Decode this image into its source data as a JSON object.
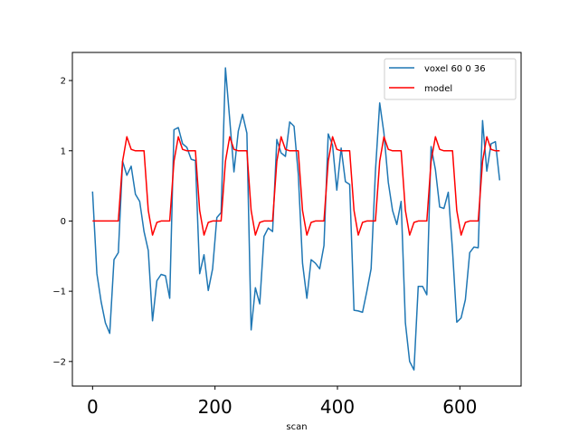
{
  "chart_data": {
    "type": "line",
    "title": "",
    "xlabel": "scan",
    "ylabel": "",
    "xlim": [
      -33,
      700
    ],
    "ylim": [
      -2.35,
      2.4
    ],
    "x_ticks": [
      0,
      200,
      400,
      600
    ],
    "y_ticks": [
      -2,
      -1,
      0,
      1,
      2
    ],
    "x_tick_labels": [
      "0",
      "200",
      "400",
      "600"
    ],
    "y_tick_labels": [
      "−2",
      "−1",
      "0",
      "1",
      "2"
    ],
    "legend_position": "top-right",
    "grid": false,
    "series": [
      {
        "name": "voxel 60 0 36",
        "color": "#1f77b4",
        "x": [
          0,
          7,
          14,
          21,
          28,
          35,
          42,
          49,
          56,
          63,
          70,
          77,
          84,
          91,
          98,
          105,
          112,
          119,
          126,
          133,
          140,
          147,
          154,
          161,
          168,
          175,
          182,
          189,
          196,
          203,
          210,
          217,
          224,
          231,
          238,
          245,
          252,
          259,
          266,
          273,
          280,
          287,
          294,
          301,
          308,
          315,
          322,
          329,
          336,
          343,
          350,
          357,
          364,
          371,
          378,
          385,
          392,
          399,
          406,
          413,
          420,
          427,
          434,
          441,
          448,
          455,
          462,
          469,
          476,
          483,
          490,
          497,
          504,
          511,
          518,
          525,
          532,
          539,
          546,
          553,
          560,
          567,
          574,
          581,
          588,
          595,
          602,
          609,
          616,
          623,
          630,
          637,
          644,
          651,
          658,
          665
        ],
        "y": [
          0.42,
          -0.75,
          -1.15,
          -1.45,
          -1.6,
          -0.55,
          -0.45,
          0.85,
          0.65,
          0.78,
          0.38,
          0.28,
          -0.15,
          -0.42,
          -1.42,
          -0.85,
          -0.76,
          -0.78,
          -1.1,
          1.3,
          1.33,
          1.1,
          1.05,
          0.88,
          0.86,
          -0.75,
          -0.48,
          -0.99,
          -0.68,
          0.05,
          0.12,
          2.18,
          1.45,
          0.7,
          1.28,
          1.52,
          1.25,
          -1.55,
          -0.95,
          -1.18,
          -0.22,
          -0.1,
          -0.15,
          1.16,
          0.97,
          0.92,
          1.41,
          1.35,
          0.67,
          -0.6,
          -1.1,
          -0.55,
          -0.6,
          -0.68,
          -0.35,
          1.24,
          1.08,
          0.44,
          1.04,
          0.56,
          0.52,
          -1.27,
          -1.28,
          -1.3,
          -1.0,
          -0.68,
          0.71,
          1.68,
          1.25,
          0.55,
          0.15,
          -0.05,
          0.28,
          -1.45,
          -2.0,
          -2.12,
          -0.93,
          -0.93,
          -1.05,
          1.06,
          0.73,
          0.2,
          0.18,
          0.41,
          -0.42,
          -1.44,
          -1.38,
          -1.12,
          -0.45,
          -0.37,
          -0.38,
          1.43,
          0.71,
          1.1,
          1.13,
          0.58
        ]
      },
      {
        "name": "model",
        "color": "#ff0000",
        "x": [
          0,
          7,
          14,
          21,
          28,
          35,
          42,
          49,
          56,
          63,
          70,
          77,
          84,
          91,
          98,
          105,
          112,
          119,
          126,
          133,
          140,
          147,
          154,
          161,
          168,
          175,
          182,
          189,
          196,
          203,
          210,
          217,
          224,
          231,
          238,
          245,
          252,
          259,
          266,
          273,
          280,
          287,
          294,
          301,
          308,
          315,
          322,
          329,
          336,
          343,
          350,
          357,
          364,
          371,
          378,
          385,
          392,
          399,
          406,
          413,
          420,
          427,
          434,
          441,
          448,
          455,
          462,
          469,
          476,
          483,
          490,
          497,
          504,
          511,
          518,
          525,
          532,
          539,
          546,
          553,
          560,
          567,
          574,
          581,
          588,
          595,
          602,
          609,
          616,
          623,
          630,
          637,
          644,
          651,
          658,
          665
        ],
        "y": [
          0,
          0,
          0,
          0,
          0,
          0,
          0,
          0.85,
          1.2,
          1.02,
          1.0,
          1.0,
          1.0,
          0.15,
          -0.2,
          -0.02,
          0,
          0,
          0,
          0.85,
          1.2,
          1.02,
          1.0,
          1.0,
          1.0,
          0.15,
          -0.2,
          -0.02,
          0,
          0,
          0,
          0.85,
          1.2,
          1.02,
          1.0,
          1.0,
          1.0,
          0.15,
          -0.2,
          -0.02,
          0,
          0,
          0,
          0.85,
          1.2,
          1.02,
          1.0,
          1.0,
          1.0,
          0.15,
          -0.2,
          -0.02,
          0,
          0,
          0,
          0.85,
          1.2,
          1.02,
          1.0,
          1.0,
          1.0,
          0.15,
          -0.2,
          -0.02,
          0,
          0,
          0,
          0.85,
          1.2,
          1.02,
          1.0,
          1.0,
          1.0,
          0.15,
          -0.2,
          -0.02,
          0,
          0,
          0,
          0.85,
          1.2,
          1.02,
          1.0,
          1.0,
          1.0,
          0.15,
          -0.2,
          -0.02,
          0,
          0,
          0,
          0.85,
          1.2,
          1.02,
          1.0,
          1.0
        ]
      }
    ]
  }
}
